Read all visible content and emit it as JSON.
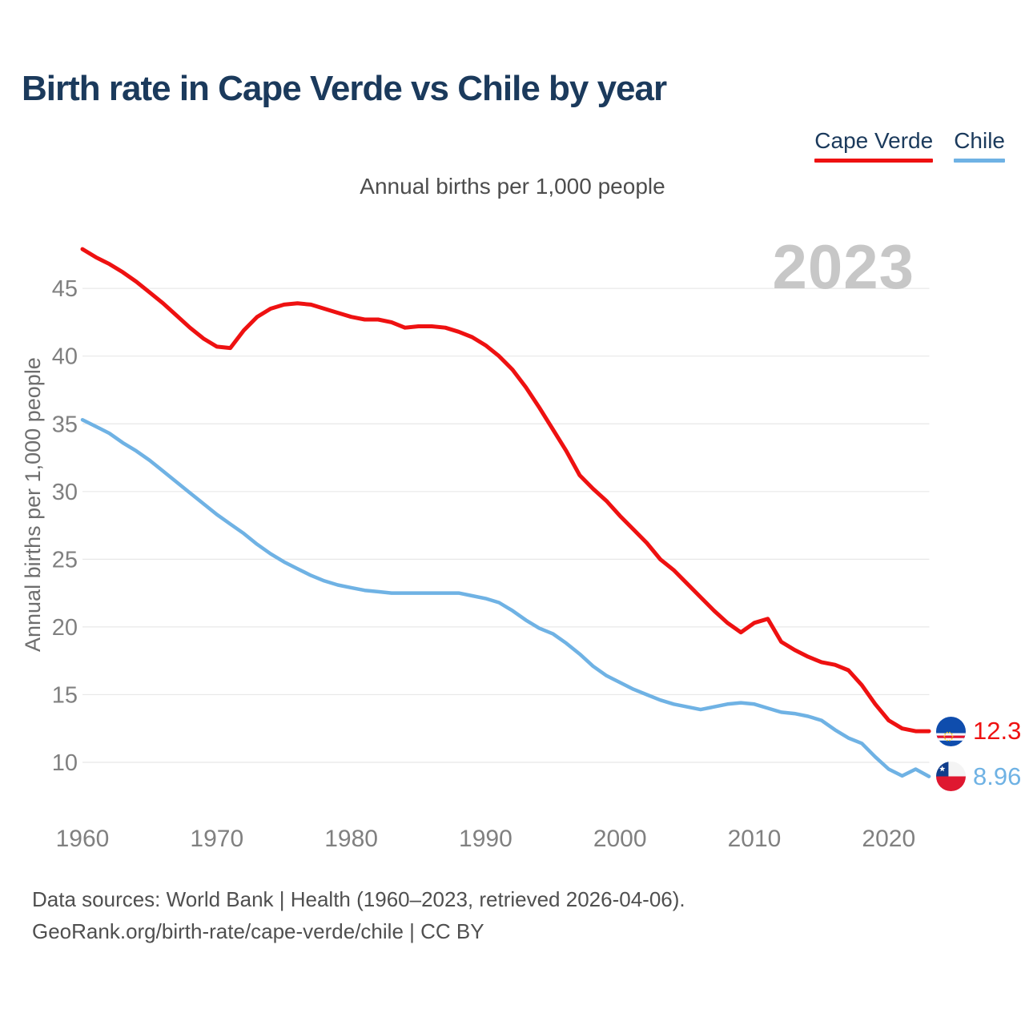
{
  "header": {
    "title": "Birth rate in Cape Verde vs Chile by year"
  },
  "watermark": "2023",
  "colors": {
    "cape_verde": "#ee1111",
    "chile": "#6fb2e4",
    "title_text": "#1b3a5c",
    "axis_text": "#808080",
    "grid": "#e8e8e8",
    "watermark_text": "#c7c7c7",
    "footer_text": "#4f4f4f"
  },
  "chart_data": {
    "type": "line",
    "title": "Birth rate in Cape Verde vs Chile by year",
    "subtitle": "Annual births per 1,000 people",
    "ylabel": "Annual births per 1,000 people",
    "xlabel": "",
    "grid": "horizontal",
    "legend_position": "top-right",
    "ylim": [
      8.5,
      48.5
    ],
    "xlim": [
      1960,
      2023
    ],
    "yticks": [
      10,
      15,
      20,
      25,
      30,
      35,
      40,
      45
    ],
    "xticks": [
      1960,
      1970,
      1980,
      1990,
      2000,
      2010,
      2020
    ],
    "x": [
      1960,
      1961,
      1962,
      1963,
      1964,
      1965,
      1966,
      1967,
      1968,
      1969,
      1970,
      1971,
      1972,
      1973,
      1974,
      1975,
      1976,
      1977,
      1978,
      1979,
      1980,
      1981,
      1982,
      1983,
      1984,
      1985,
      1986,
      1987,
      1988,
      1989,
      1990,
      1991,
      1992,
      1993,
      1994,
      1995,
      1996,
      1997,
      1998,
      1999,
      2000,
      2001,
      2002,
      2003,
      2004,
      2005,
      2006,
      2007,
      2008,
      2009,
      2010,
      2011,
      2012,
      2013,
      2014,
      2015,
      2016,
      2017,
      2018,
      2019,
      2020,
      2021,
      2022,
      2023
    ],
    "series": [
      {
        "name": "Cape Verde",
        "color": "#ee1111",
        "end_label": "12.3",
        "values": [
          47.9,
          47.3,
          46.8,
          46.2,
          45.5,
          44.7,
          43.9,
          43.0,
          42.1,
          41.3,
          40.7,
          40.6,
          41.9,
          42.9,
          43.5,
          43.8,
          43.9,
          43.8,
          43.5,
          43.2,
          42.9,
          42.7,
          42.7,
          42.5,
          42.1,
          42.2,
          42.2,
          42.1,
          41.8,
          41.4,
          40.8,
          40.0,
          39.0,
          37.7,
          36.2,
          34.6,
          33.0,
          31.2,
          30.2,
          29.3,
          28.2,
          27.2,
          26.2,
          25.0,
          24.2,
          23.2,
          22.2,
          21.2,
          20.3,
          19.6,
          20.3,
          20.6,
          18.9,
          18.3,
          17.8,
          17.4,
          17.2,
          16.8,
          15.7,
          14.3,
          13.1,
          12.5,
          12.3,
          12.3
        ]
      },
      {
        "name": "Chile",
        "color": "#6fb2e4",
        "end_label": "8.96",
        "values": [
          35.3,
          34.8,
          34.3,
          33.6,
          33.0,
          32.3,
          31.5,
          30.7,
          29.9,
          29.1,
          28.3,
          27.6,
          26.9,
          26.1,
          25.4,
          24.8,
          24.3,
          23.8,
          23.4,
          23.1,
          22.9,
          22.7,
          22.6,
          22.5,
          22.5,
          22.5,
          22.5,
          22.5,
          22.5,
          22.3,
          22.1,
          21.8,
          21.2,
          20.5,
          19.9,
          19.5,
          18.8,
          18.0,
          17.1,
          16.4,
          15.9,
          15.4,
          15.0,
          14.6,
          14.3,
          14.1,
          13.9,
          14.1,
          14.3,
          14.4,
          14.3,
          14.0,
          13.7,
          13.6,
          13.4,
          13.1,
          12.4,
          11.8,
          11.4,
          10.4,
          9.5,
          9.0,
          9.5,
          8.96
        ]
      }
    ]
  },
  "footer": {
    "line1": "Data sources: World Bank | Health (1960–2023, retrieved 2026-04-06).",
    "line2": "GeoRank.org/birth-rate/cape-verde/chile | CC BY"
  }
}
